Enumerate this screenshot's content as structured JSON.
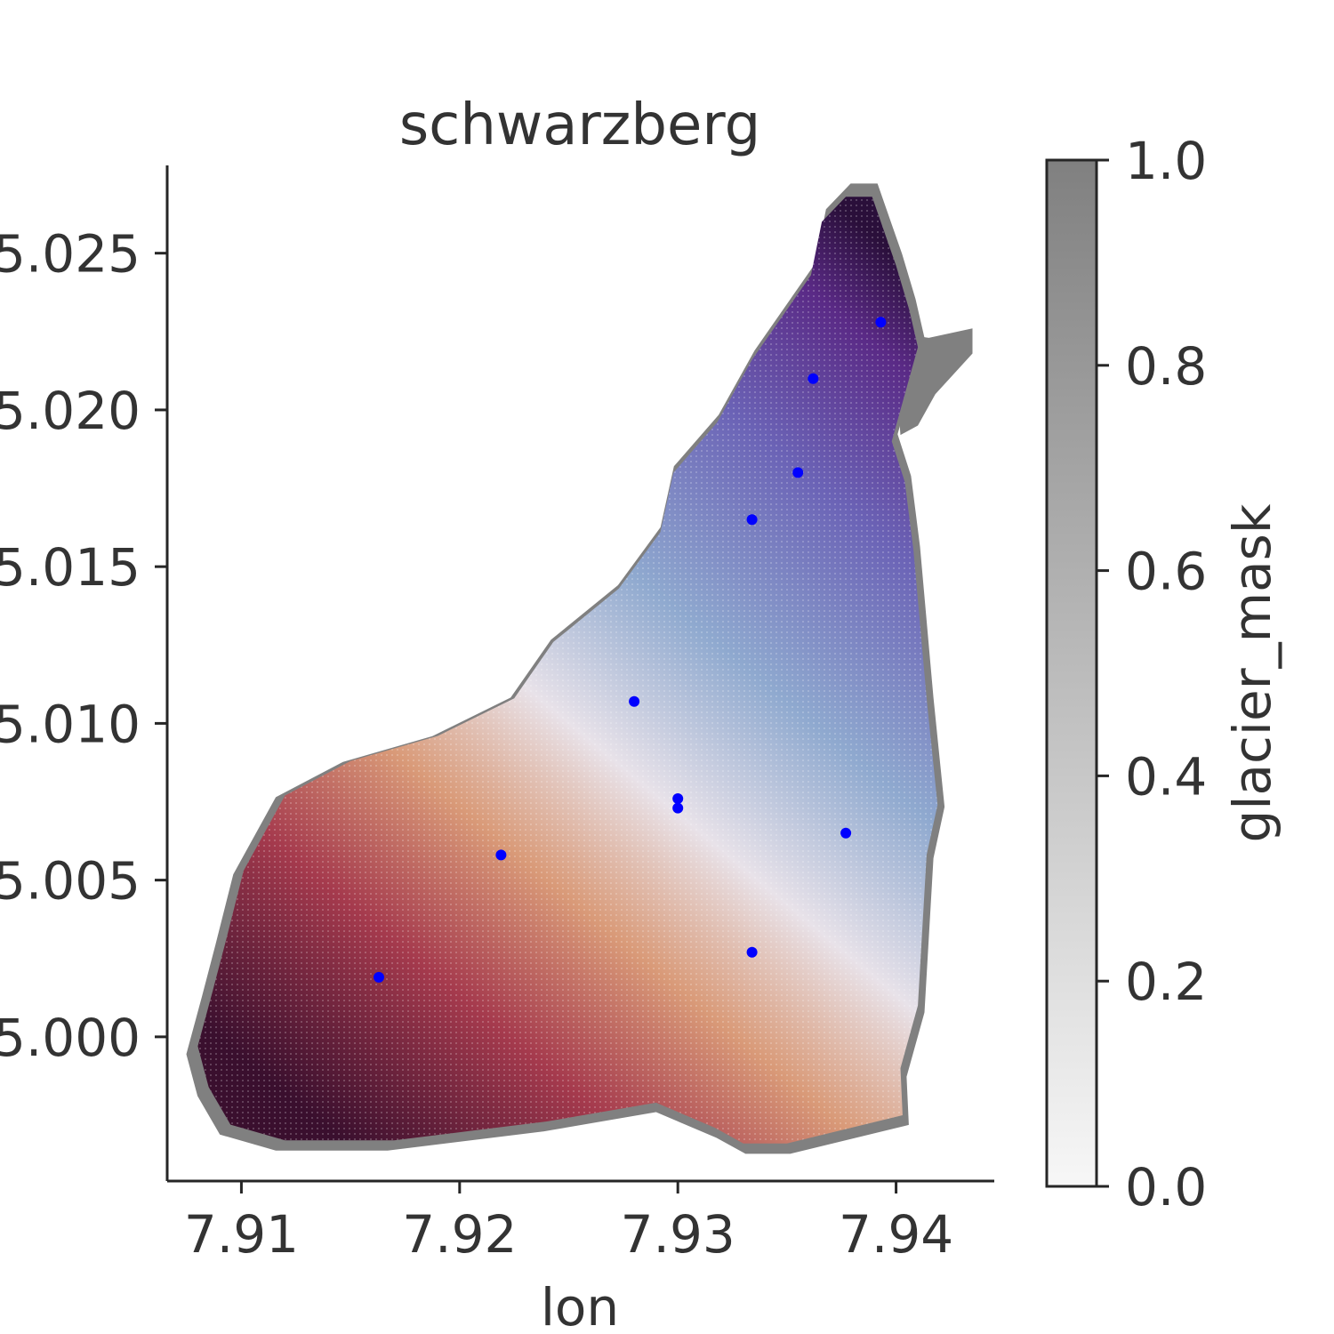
{
  "chart_data": {
    "type": "heatmap",
    "title": "schwarzberg",
    "xlabel": "lon",
    "ylabel": "",
    "xlim": [
      7.9066,
      7.9445
    ],
    "ylim": [
      45.9954,
      46.0278
    ],
    "x_ticks": [
      7.91,
      7.92,
      7.93,
      7.94
    ],
    "x_tick_labels": [
      "7.91",
      "7.92",
      "7.93",
      "7.94"
    ],
    "y_ticks": [
      46.0,
      46.005,
      46.01,
      46.015,
      46.02,
      46.025
    ],
    "y_tick_labels": [
      "5.000",
      "5.005",
      "5.010",
      "5.015",
      "5.020",
      "5.025"
    ],
    "grid": false,
    "colorbar": {
      "label": "glacier_mask",
      "range": [
        0.0,
        1.0
      ],
      "ticks": [
        0.0,
        0.2,
        0.4,
        0.6,
        0.8,
        1.0
      ],
      "tick_labels": [
        "0.0",
        "0.2",
        "0.4",
        "0.6",
        "0.8",
        "1.0"
      ],
      "color_low": "#f7f7f7",
      "color_high": "#808080"
    },
    "glacier_mask_color": "#808080",
    "cell_value_colormap": [
      "#2a0f3a",
      "#5a2a86",
      "#6b63b6",
      "#8fa9cf",
      "#e8e2e9",
      "#d99a78",
      "#a53a4d",
      "#3a0f2e"
    ],
    "glacier_outline_lonlat": [
      [
        7.9087,
        46.0015
      ],
      [
        7.9093,
        46.0031
      ],
      [
        7.9101,
        46.0053
      ],
      [
        7.912,
        46.0077
      ],
      [
        7.915,
        46.0088
      ],
      [
        7.919,
        46.0096
      ],
      [
        7.9225,
        46.0108
      ],
      [
        7.9243,
        46.0126
      ],
      [
        7.9273,
        46.0143
      ],
      [
        7.9292,
        46.0161
      ],
      [
        7.9298,
        46.018
      ],
      [
        7.9318,
        46.0196
      ],
      [
        7.9334,
        46.0216
      ],
      [
        7.9361,
        46.0243
      ],
      [
        7.9366,
        46.026
      ],
      [
        7.9377,
        46.0268
      ],
      [
        7.9389,
        46.0268
      ],
      [
        7.9396,
        46.0254
      ],
      [
        7.94,
        46.0246
      ],
      [
        7.9406,
        46.0232
      ],
      [
        7.941,
        46.022
      ],
      [
        7.9398,
        46.019
      ],
      [
        7.9404,
        46.0177
      ],
      [
        7.9408,
        46.0155
      ],
      [
        7.9414,
        46.0108
      ],
      [
        7.9419,
        46.0074
      ],
      [
        7.9414,
        46.0058
      ],
      [
        7.941,
        46.001
      ],
      [
        7.9402,
        45.999
      ],
      [
        7.9403,
        45.9975
      ],
      [
        7.935,
        45.9966
      ],
      [
        7.933,
        45.9966
      ],
      [
        7.9317,
        45.9971
      ],
      [
        7.929,
        45.9979
      ],
      [
        7.924,
        45.9973
      ],
      [
        7.917,
        45.9967
      ],
      [
        7.912,
        45.9967
      ],
      [
        7.9095,
        45.9972
      ],
      [
        7.9085,
        45.9984
      ],
      [
        7.908,
        45.9997
      ]
    ],
    "glacier_mask_extra_lonlat": [
      [
        7.9395,
        46.0225
      ],
      [
        7.9415,
        46.0223
      ],
      [
        7.9435,
        46.0226
      ],
      [
        7.9435,
        46.0218
      ],
      [
        7.9418,
        46.0205
      ],
      [
        7.941,
        46.0195
      ],
      [
        7.9402,
        46.0192
      ],
      [
        7.94,
        46.021
      ]
    ],
    "stations": [
      {
        "lon": 7.9393,
        "lat": 46.0228
      },
      {
        "lon": 7.9362,
        "lat": 46.021
      },
      {
        "lon": 7.9355,
        "lat": 46.018
      },
      {
        "lon": 7.9334,
        "lat": 46.0165
      },
      {
        "lon": 7.928,
        "lat": 46.0107
      },
      {
        "lon": 7.93,
        "lat": 46.0076
      },
      {
        "lon": 7.93,
        "lat": 46.0073
      },
      {
        "lon": 7.9377,
        "lat": 46.0065
      },
      {
        "lon": 7.9219,
        "lat": 46.0058
      },
      {
        "lon": 7.9163,
        "lat": 46.0019
      },
      {
        "lon": 7.9334,
        "lat": 46.0027
      }
    ],
    "station_color": "#0000ff"
  }
}
